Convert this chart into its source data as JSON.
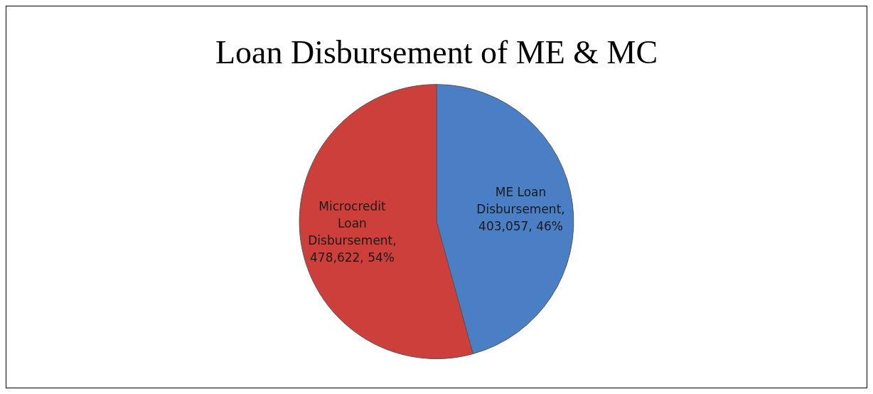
{
  "chart_data": {
    "type": "pie",
    "title": "Loan Disbursement of ME & MC",
    "categories": [
      "ME Loan Disbursement",
      "Microcredit Loan Disbursement"
    ],
    "values": [
      403057,
      478622
    ],
    "colors": [
      "#4a7fc6",
      "#cc3f3b"
    ],
    "value_labels": [
      ", 403,057, 46%",
      ", 478,622, 54%"
    ],
    "legend": false
  }
}
